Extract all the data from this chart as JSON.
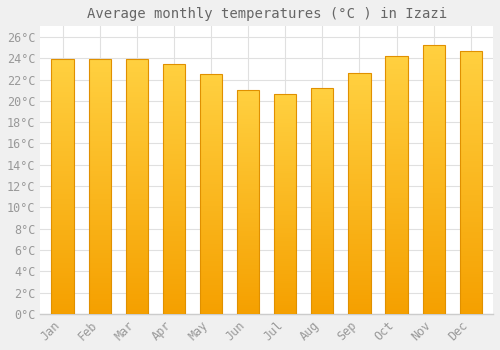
{
  "title": "Average monthly temperatures (°C ) in Izazi",
  "months": [
    "Jan",
    "Feb",
    "Mar",
    "Apr",
    "May",
    "Jun",
    "Jul",
    "Aug",
    "Sep",
    "Oct",
    "Nov",
    "Dec"
  ],
  "values": [
    23.9,
    23.9,
    23.9,
    23.5,
    22.5,
    21.0,
    20.6,
    21.2,
    22.6,
    24.2,
    25.2,
    24.7
  ],
  "bar_color_top": "#FFD040",
  "bar_color_bottom": "#F5A000",
  "bar_edge_color": "#E09000",
  "background_color": "#F0F0F0",
  "plot_bg_color": "#FFFFFF",
  "grid_color": "#E0E0E0",
  "title_color": "#666666",
  "tick_label_color": "#999999",
  "axis_line_color": "#CCCCCC",
  "ylim": [
    0,
    27
  ],
  "yticks": [
    0,
    2,
    4,
    6,
    8,
    10,
    12,
    14,
    16,
    18,
    20,
    22,
    24,
    26
  ],
  "title_fontsize": 10,
  "tick_fontsize": 8.5,
  "font_family": "monospace",
  "bar_width": 0.6
}
